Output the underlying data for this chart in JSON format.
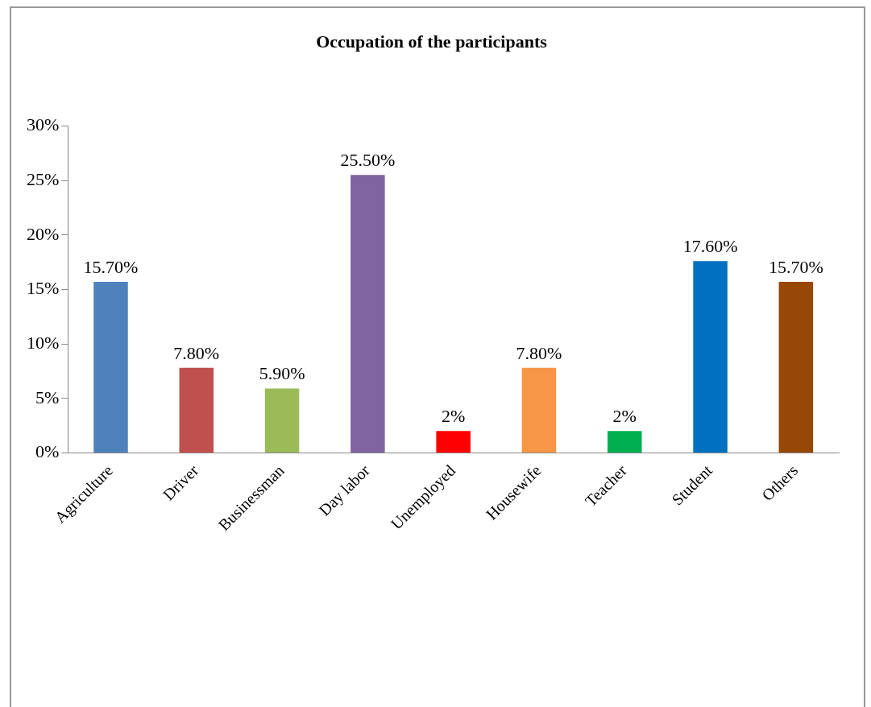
{
  "chart_data": {
    "type": "bar",
    "title": "Occupation of the participants",
    "categories": [
      "Agriculture",
      "Driver",
      "Businessman",
      "Day labor",
      "Unemployed",
      "Housewife",
      "Teacher",
      "Student",
      "Others"
    ],
    "values": [
      15.7,
      7.8,
      5.9,
      25.5,
      2,
      7.8,
      2,
      17.6,
      15.7
    ],
    "colors": [
      "#4f81bd",
      "#c0504d",
      "#9bbb59",
      "#8064a2",
      "#ff0000",
      "#f79646",
      "#00b050",
      "#0070c0",
      "#974706"
    ],
    "value_labels": [
      "15.70%",
      "7.80%",
      "5.90%",
      "25.50%",
      "2%",
      "7.80%",
      "2%",
      "17.60%",
      "15.70%"
    ],
    "ylim": [
      0,
      30
    ],
    "yticks": [
      {
        "value": 0,
        "label": "0%"
      },
      {
        "value": 5,
        "label": "5%"
      },
      {
        "value": 10,
        "label": "10%"
      },
      {
        "value": 15,
        "label": "15%"
      },
      {
        "value": 20,
        "label": "20%"
      },
      {
        "value": 25,
        "label": "25%"
      },
      {
        "value": 30,
        "label": "30%"
      }
    ],
    "grid": false,
    "legend": false
  }
}
